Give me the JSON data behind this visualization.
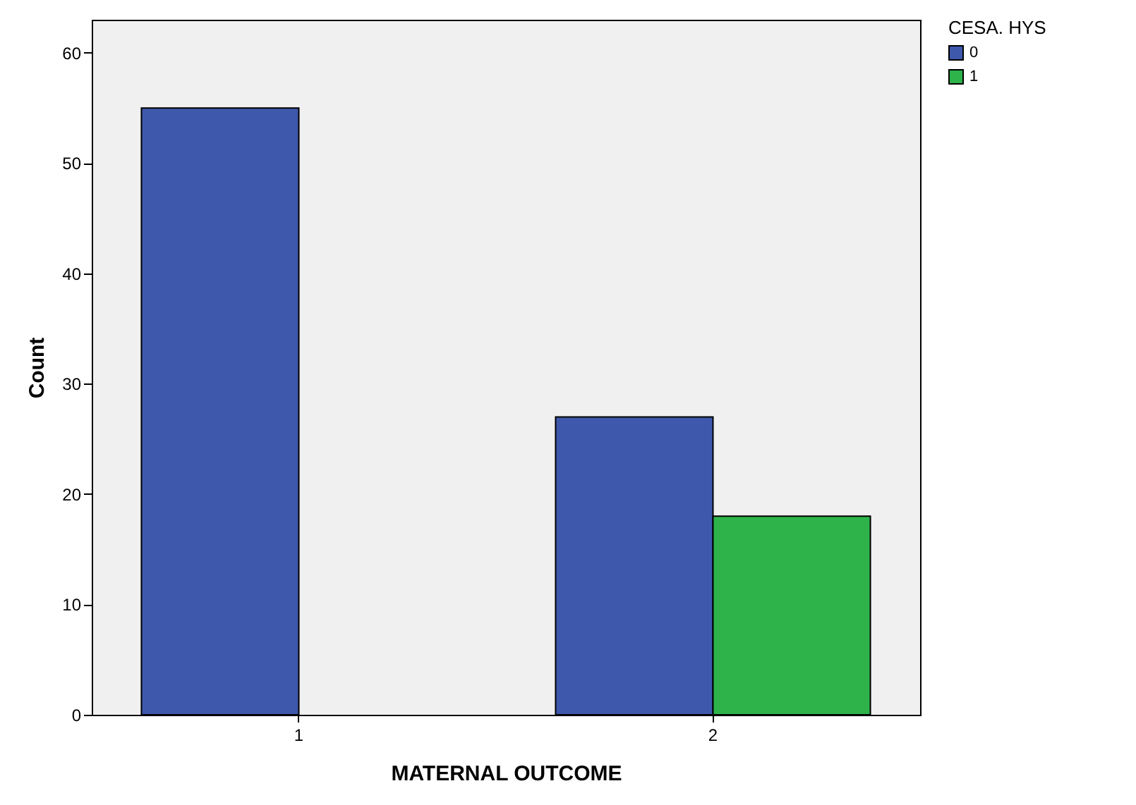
{
  "chart_data": {
    "type": "bar",
    "xlabel": "MATERNAL OUTCOME",
    "ylabel": "Count",
    "legend_title": "CESA. HYS",
    "legend": "top right",
    "categories": [
      "1",
      "2"
    ],
    "series": [
      {
        "name": "0",
        "color": "#3e58ac",
        "values": [
          55,
          27
        ]
      },
      {
        "name": "1",
        "color": "#2db34a",
        "values": [
          null,
          18
        ]
      }
    ],
    "ylim": [
      0,
      63
    ],
    "yticks": [
      0,
      10,
      20,
      30,
      40,
      50,
      60
    ],
    "grid": false
  }
}
